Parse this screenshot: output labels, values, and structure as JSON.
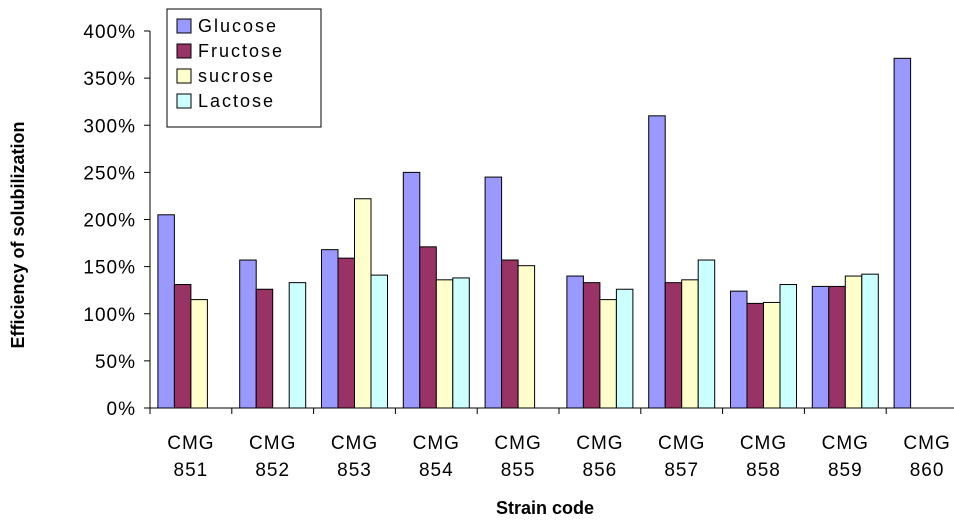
{
  "chart_data": {
    "type": "bar",
    "title": "",
    "xlabel": "Strain code",
    "ylabel": "Efficiency of solubilization",
    "categories": [
      [
        "CMG",
        "851"
      ],
      [
        "CMG",
        "852"
      ],
      [
        "CMG",
        "853"
      ],
      [
        "CMG",
        "854"
      ],
      [
        "CMG",
        "855"
      ],
      [
        "CMG",
        "856"
      ],
      [
        "CMG",
        "857"
      ],
      [
        "CMG",
        "858"
      ],
      [
        "CMG",
        "859"
      ],
      [
        "CMG",
        "860"
      ]
    ],
    "series": [
      {
        "name": "Glucose",
        "color": "#9999ff",
        "values": [
          205,
          157,
          168,
          250,
          245,
          140,
          310,
          124,
          129,
          371
        ]
      },
      {
        "name": "Fructose",
        "color": "#993366",
        "values": [
          131,
          126,
          159,
          171,
          157,
          133,
          133,
          111,
          129,
          null
        ]
      },
      {
        "name": "sucrose",
        "color": "#ffffcc",
        "values": [
          115,
          null,
          222,
          136,
          151,
          115,
          136,
          112,
          140,
          null
        ]
      },
      {
        "name": "Lactose",
        "color": "#ccffff",
        "values": [
          null,
          133,
          141,
          138,
          null,
          126,
          157,
          131,
          142,
          null
        ]
      }
    ],
    "ylim": [
      0,
      400
    ],
    "yticks": [
      0,
      50,
      100,
      150,
      200,
      250,
      300,
      350,
      400
    ],
    "ytick_labels": [
      "0%",
      "50%",
      "100%",
      "150%",
      "200%",
      "250%",
      "300%",
      "350%",
      "400%"
    ],
    "grid": false,
    "legend_position": "top-left"
  }
}
